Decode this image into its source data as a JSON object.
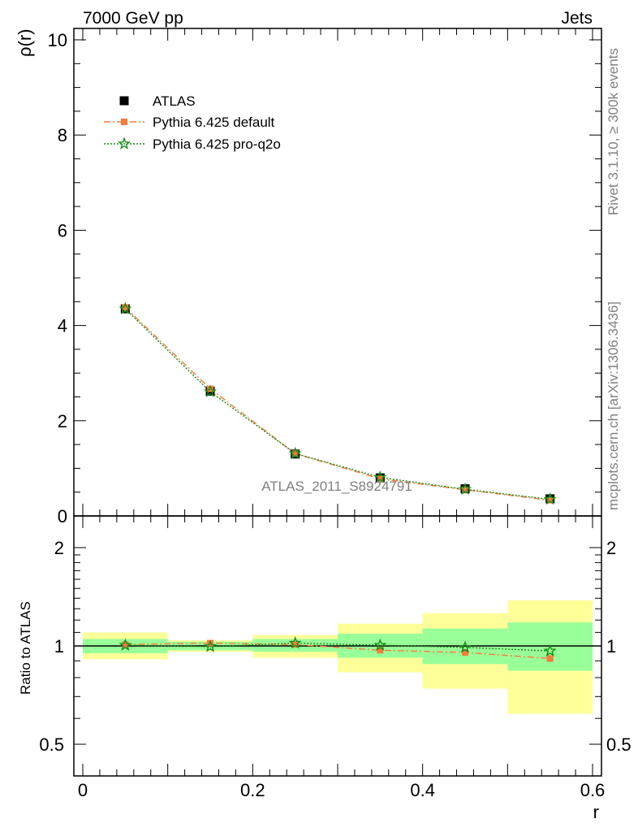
{
  "header": {
    "left": "7000 GeV pp",
    "right": "Jets"
  },
  "side_labels": {
    "rivet": "Rivet 3.1.10, ≥ 300k events",
    "mcplots": "mcplots.cern.ch [arXiv:1306.3436]"
  },
  "analysis_label": "ATLAS_2011_S8924791",
  "colors": {
    "data": "#000000",
    "pythia_default": "#f47c3c",
    "pythia_proq2o": "#1a8c1a",
    "band_outer": "#ffff99",
    "band_inner": "#99ff99"
  },
  "chart_data": [
    {
      "type": "scatter",
      "ylabel": "ρ(r)",
      "xlim": [
        0,
        0.6
      ],
      "ylim": [
        0,
        10
      ],
      "yticks": [
        "0",
        "2",
        "4",
        "6",
        "8",
        "10"
      ],
      "legend_position": "top-left",
      "x": [
        0.05,
        0.15,
        0.25,
        0.35,
        0.45,
        0.55
      ],
      "series": [
        {
          "name": "ATLAS",
          "values": [
            4.35,
            2.62,
            1.3,
            0.8,
            0.57,
            0.36
          ]
        },
        {
          "name": "Pythia 6.425 default",
          "values": [
            4.38,
            2.67,
            1.31,
            0.78,
            0.55,
            0.33
          ]
        },
        {
          "name": "Pythia 6.425 pro-q2o",
          "values": [
            4.35,
            2.61,
            1.31,
            0.81,
            0.56,
            0.35
          ]
        }
      ]
    },
    {
      "type": "line",
      "ylabel": "Ratio to ATLAS",
      "xlabel": "r",
      "xlim": [
        0,
        0.6
      ],
      "ylim": [
        0.38,
        2.3
      ],
      "log_y": true,
      "yticks": [
        "0.5",
        "1",
        "2"
      ],
      "xticks": [
        "0",
        "0.2",
        "0.4",
        "0.6"
      ],
      "bin_edges": [
        0,
        0.1,
        0.2,
        0.3,
        0.4,
        0.5,
        0.6
      ],
      "band_outer": [
        [
          0.91,
          1.1
        ],
        [
          0.96,
          1.04
        ],
        [
          0.92,
          1.08
        ],
        [
          0.83,
          1.17
        ],
        [
          0.74,
          1.26
        ],
        [
          0.62,
          1.38
        ]
      ],
      "band_inner": [
        [
          0.95,
          1.05
        ],
        [
          0.97,
          1.03
        ],
        [
          0.96,
          1.05
        ],
        [
          0.92,
          1.09
        ],
        [
          0.88,
          1.13
        ],
        [
          0.84,
          1.18
        ]
      ],
      "x": [
        0.05,
        0.15,
        0.25,
        0.35,
        0.45,
        0.55
      ],
      "series": [
        {
          "name": "Pythia 6.425 default",
          "values": [
            1.01,
            1.02,
            1.01,
            0.97,
            0.955,
            0.915
          ]
        },
        {
          "name": "Pythia 6.425 pro-q2o",
          "values": [
            1.005,
            0.995,
            1.02,
            1.005,
            0.99,
            0.965
          ]
        }
      ]
    }
  ]
}
